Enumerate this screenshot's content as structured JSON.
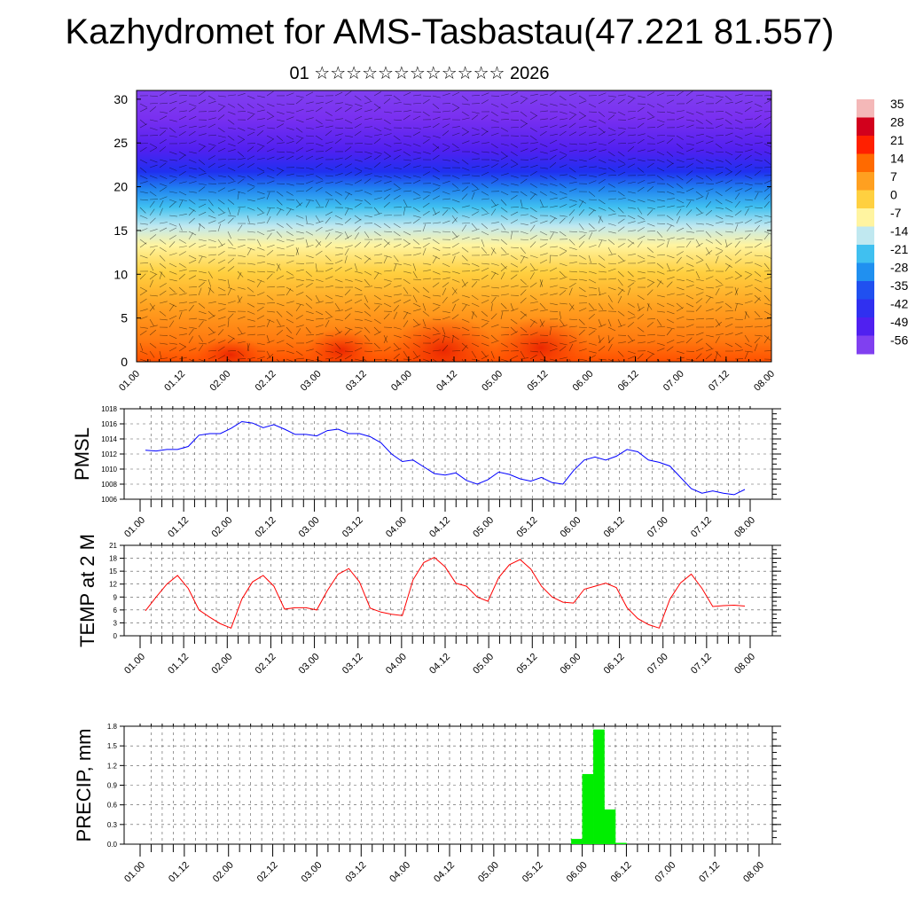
{
  "title": "Kazhydromet for AMS-Tasbastau(47.221 81.557)",
  "subtitle": "01 ☆☆☆☆☆☆☆☆☆☆☆☆ 2026",
  "chart_data": [
    {
      "type": "heatmap",
      "title": "",
      "xlabel": "",
      "ylabel": "",
      "x_tick_labels": [
        "01.00",
        "01.12",
        "02.00",
        "02.12",
        "03.00",
        "03.12",
        "04.00",
        "04.12",
        "05.00",
        "05.12",
        "06.00",
        "06.12",
        "07.00",
        "07.12",
        "08.00"
      ],
      "y_ticks": [
        0,
        5,
        10,
        15,
        20,
        25,
        30
      ],
      "ylim": [
        0,
        31
      ],
      "colorbar_labels": [
        "35",
        "28",
        "21",
        "14",
        "7",
        "0",
        "-7",
        "-14",
        "-21",
        "-28",
        "-35",
        "-42",
        "-49",
        "-56"
      ],
      "colorbar_colors": [
        "#f4b8b8",
        "#d2001c",
        "#ff2000",
        "#ff6a00",
        "#ffa020",
        "#ffd040",
        "#fff4a0",
        "#c0e8f0",
        "#40c0f0",
        "#2090f0",
        "#2050f0",
        "#3030f0",
        "#5020f0",
        "#8040f0"
      ],
      "overlay": "wind barbs"
    },
    {
      "type": "line",
      "ylabel": "PMSL",
      "ylim": [
        1006,
        1018
      ],
      "y_ticks": [
        1006,
        1008,
        1010,
        1012,
        1014,
        1016,
        1018
      ],
      "x_tick_labels": [
        "01.00",
        "01.12",
        "02.00",
        "02.12",
        "03.00",
        "03.12",
        "04.00",
        "04.12",
        "05.00",
        "05.12",
        "06.00",
        "06.12",
        "07.00",
        "07.12",
        "08.00"
      ],
      "line_color": "#0000ff",
      "values": [
        1012.5,
        1012.4,
        1012.6,
        1012.6,
        1013.0,
        1014.5,
        1014.7,
        1014.7,
        1015.4,
        1016.3,
        1016.1,
        1015.5,
        1015.9,
        1015.3,
        1014.6,
        1014.6,
        1014.4,
        1015.1,
        1015.3,
        1014.7,
        1014.7,
        1014.3,
        1013.5,
        1012.0,
        1011.0,
        1011.2,
        1010.3,
        1009.4,
        1009.2,
        1009.5,
        1008.5,
        1008.0,
        1008.6,
        1009.6,
        1009.3,
        1008.7,
        1008.4,
        1008.9,
        1008.2,
        1008.0,
        1009.8,
        1011.2,
        1011.6,
        1011.2,
        1011.7,
        1012.6,
        1012.3,
        1011.2,
        1010.9,
        1010.4,
        1008.9,
        1007.4,
        1006.8,
        1007.1,
        1006.8,
        1006.6,
        1007.3
      ]
    },
    {
      "type": "line",
      "ylabel": "TEMP at 2 M",
      "ylim": [
        0,
        21
      ],
      "y_ticks": [
        0,
        3,
        6,
        9,
        12,
        15,
        18,
        21
      ],
      "x_tick_labels": [
        "01.00",
        "01.12",
        "02.00",
        "02.12",
        "03.00",
        "03.12",
        "04.00",
        "04.12",
        "05.00",
        "05.12",
        "06.00",
        "06.12",
        "07.00",
        "07.12",
        "08.00"
      ],
      "line_color": "#ff0000",
      "values": [
        5.8,
        9.0,
        12.0,
        14.0,
        11.0,
        6.0,
        4.3,
        2.8,
        1.8,
        8.5,
        12.5,
        14.0,
        11.5,
        6.2,
        6.5,
        6.5,
        6.0,
        10.5,
        14.3,
        15.6,
        12.5,
        6.4,
        5.5,
        5.0,
        4.7,
        13.0,
        17.0,
        18.2,
        16.0,
        12.2,
        11.5,
        9.0,
        8.0,
        13.5,
        16.5,
        17.7,
        15.5,
        11.5,
        9.0,
        7.8,
        7.6,
        10.8,
        11.5,
        12.2,
        11.2,
        6.5,
        4.0,
        2.6,
        1.8,
        8.5,
        12.3,
        14.3,
        11.0,
        6.8,
        7.0,
        7.1,
        6.9
      ]
    },
    {
      "type": "bar",
      "ylabel": "PRECIP, mm",
      "ylim": [
        0,
        1.8
      ],
      "y_ticks": [
        "0.0",
        "0.3",
        "0.6",
        "0.9",
        "1.2",
        "1.5",
        "1.8"
      ],
      "x_tick_labels": [
        "01.00",
        "01.12",
        "02.00",
        "02.12",
        "03.00",
        "03.12",
        "04.00",
        "04.12",
        "05.00",
        "05.12",
        "06.00",
        "06.12",
        "07.00",
        "07.12",
        "08.00"
      ],
      "bar_color": "#00ee00",
      "values": [
        0,
        0,
        0,
        0,
        0,
        0,
        0,
        0,
        0,
        0,
        0,
        0,
        0,
        0,
        0,
        0,
        0,
        0,
        0,
        0,
        0,
        0,
        0,
        0,
        0,
        0,
        0,
        0,
        0,
        0,
        0,
        0,
        0,
        0,
        0,
        0,
        0,
        0,
        0,
        0.08,
        1.07,
        1.75,
        0.53,
        0.02,
        0,
        0,
        0,
        0,
        0,
        0,
        0,
        0,
        0,
        0,
        0,
        0
      ]
    }
  ]
}
